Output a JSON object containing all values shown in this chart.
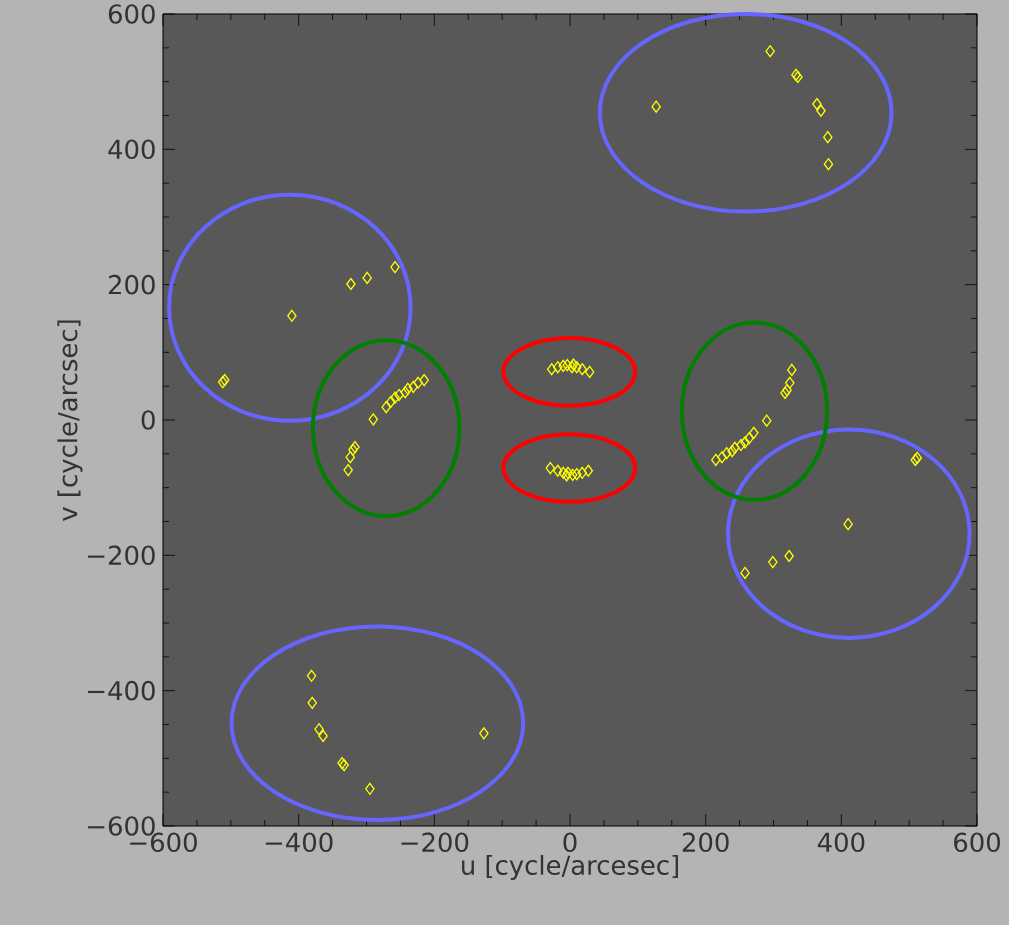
{
  "chart_data": {
    "type": "scatter",
    "xlabel": "u [cycle/arcesec]",
    "ylabel": "v [cycle/arcsec]",
    "xlim": [
      -600,
      600
    ],
    "ylim": [
      -600,
      600
    ],
    "xticks": [
      {
        "value": -600,
        "label": "−600"
      },
      {
        "value": -400,
        "label": "−400"
      },
      {
        "value": -200,
        "label": "−200"
      },
      0,
      200,
      400,
      600
    ],
    "yticks": [
      {
        "value": -600,
        "label": "−600"
      },
      {
        "value": -400,
        "label": "−400"
      },
      {
        "value": -200,
        "label": "−200"
      },
      0,
      200,
      400,
      600
    ],
    "marker": "diamond",
    "series": [
      {
        "color": "#ffff00",
        "x": [
          127,
          295,
          333,
          336,
          364,
          370,
          380,
          381,
          -127,
          -295,
          -333,
          -336,
          -364,
          -370,
          -380,
          -381,
          -410,
          -323,
          -299,
          -258,
          -512,
          -509,
          410,
          323,
          299,
          258,
          512,
          509,
          -290,
          -327,
          -324,
          -320,
          -317,
          -271,
          -264,
          -258,
          -252,
          -243,
          -239,
          -231,
          -224,
          -215,
          290,
          327,
          324,
          320,
          317,
          271,
          264,
          258,
          252,
          243,
          239,
          231,
          224,
          215,
          -27,
          -18,
          -10,
          -4,
          3,
          5,
          10,
          18,
          29,
          27,
          18,
          10,
          4,
          -3,
          -5,
          -10,
          -18,
          -29
        ],
        "values": [
          463,
          545,
          510,
          507,
          467,
          457,
          418,
          378,
          -463,
          -545,
          -510,
          -507,
          -467,
          -457,
          -418,
          -378,
          154,
          201,
          210,
          226,
          56,
          59,
          -154,
          -201,
          -210,
          -226,
          -56,
          -59,
          1,
          -74,
          -55,
          -44,
          -40,
          19,
          27,
          33,
          37,
          41,
          46,
          49,
          55,
          59,
          -1,
          74,
          55,
          44,
          40,
          -19,
          -27,
          -33,
          -37,
          -41,
          -46,
          -49,
          -55,
          -59,
          75,
          78,
          80,
          81,
          78,
          82,
          78,
          75,
          71,
          -75,
          -78,
          -80,
          -81,
          -78,
          -82,
          -78,
          -75,
          -71
        ]
      }
    ]
  }
}
